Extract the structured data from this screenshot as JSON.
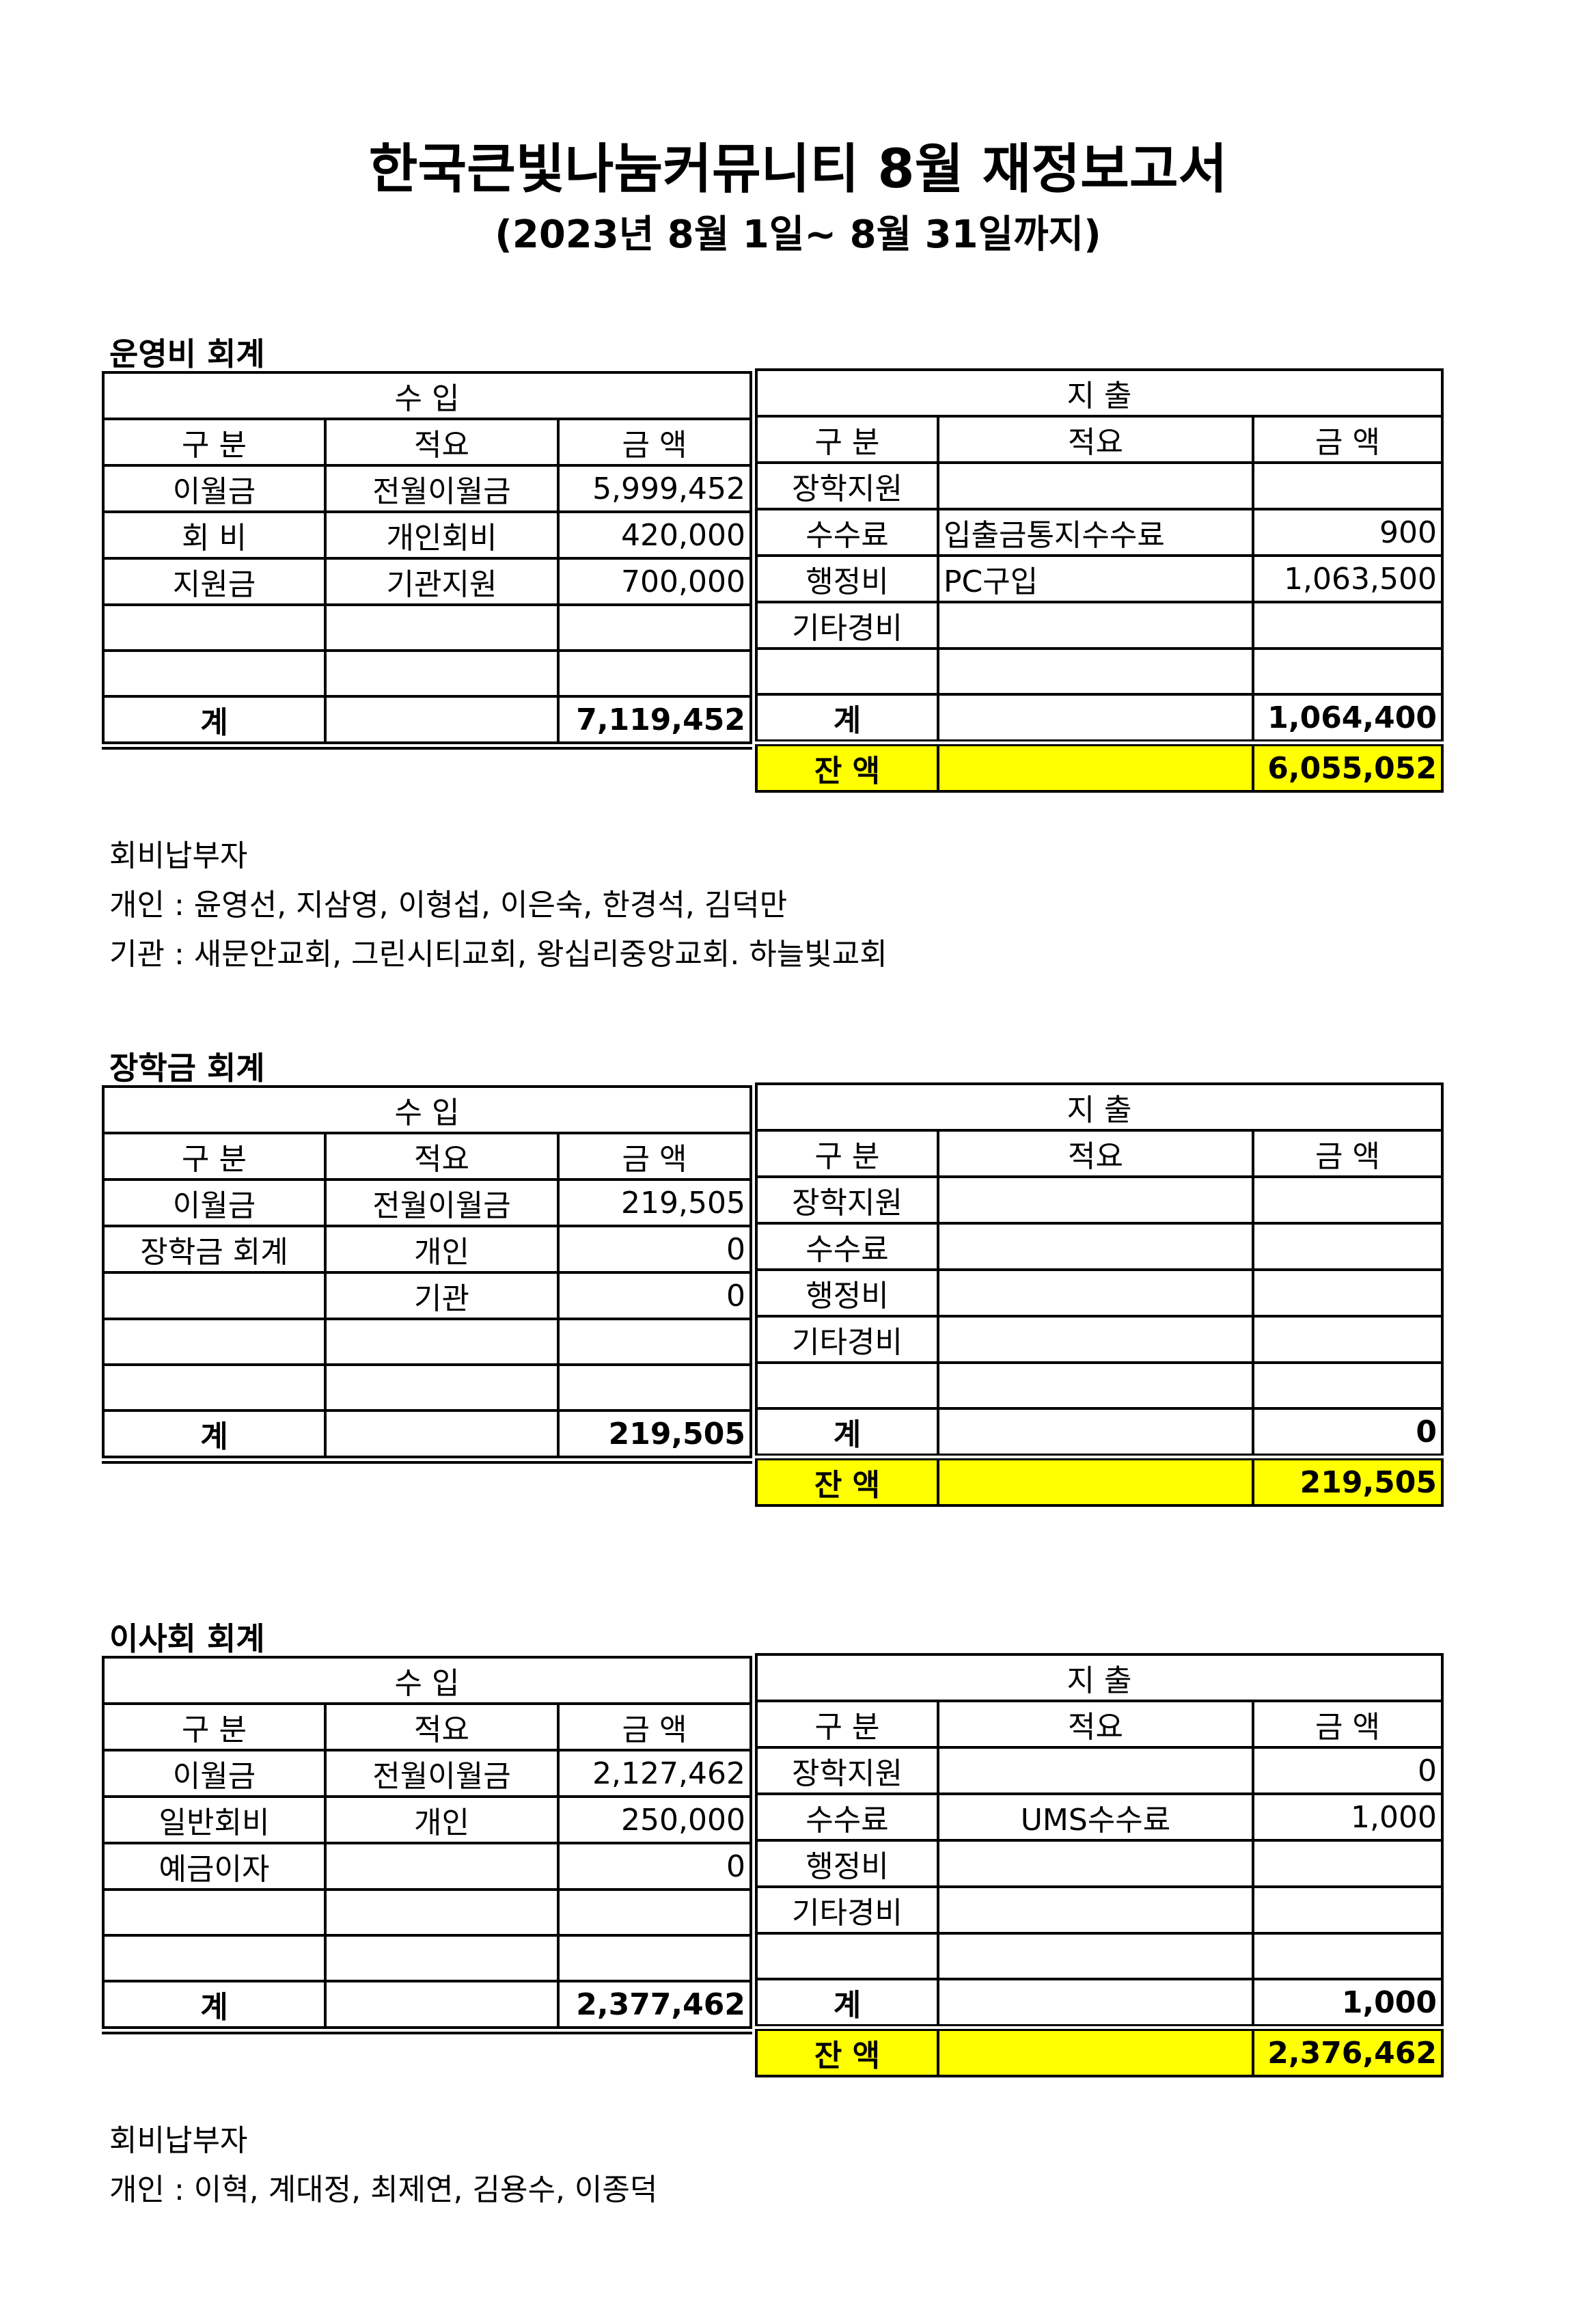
{
  "title": "한국큰빛나눔커뮤니티 8월 재정보고서",
  "subtitle": "(2023년  8월 1일~ 8월 31일까지)",
  "headers": {
    "income": "수 입",
    "expense": "지 출",
    "category": "구 분",
    "description": "적요",
    "amount": "금 액",
    "total": "계",
    "balance": "잔 액"
  },
  "sections": [
    {
      "name": "운영비 회계",
      "income_rows": [
        [
          "이월금",
          "전월이월금",
          "5,999,452"
        ],
        [
          "회 비",
          "개인회비",
          "420,000"
        ],
        [
          "지원금",
          "기관지원",
          "700,000"
        ],
        [
          "",
          "",
          ""
        ],
        [
          "",
          "",
          ""
        ]
      ],
      "income_total": "7,119,452",
      "expense_rows": [
        [
          "장학지원",
          "",
          ""
        ],
        [
          "수수료",
          "입출금통지수수료",
          "900"
        ],
        [
          "행정비",
          "PC구입",
          "1,063,500"
        ],
        [
          "기타경비",
          "",
          ""
        ],
        [
          "",
          "",
          ""
        ]
      ],
      "expense_total": "1,064,400",
      "balance": "6,055,052",
      "notes": [
        "회비납부자",
        "개인 : 윤영선, 지삼영, 이형섭, 이은숙, 한경석, 김덕만",
        "기관 : 새문안교회, 그린시티교회, 왕십리중앙교회. 하늘빛교회"
      ]
    },
    {
      "name": "장학금 회계",
      "income_rows": [
        [
          "이월금",
          "전월이월금",
          "219,505"
        ],
        [
          "장학금 회계",
          "개인",
          "0"
        ],
        [
          "",
          "기관",
          "0"
        ],
        [
          "",
          "",
          ""
        ],
        [
          "",
          "",
          ""
        ]
      ],
      "income_total": "219,505",
      "expense_rows": [
        [
          "장학지원",
          "",
          ""
        ],
        [
          "수수료",
          "",
          ""
        ],
        [
          "행정비",
          "",
          ""
        ],
        [
          "기타경비",
          "",
          ""
        ],
        [
          "",
          "",
          ""
        ]
      ],
      "expense_total": "0",
      "balance": "219,505",
      "notes": []
    },
    {
      "name": "이사회 회계",
      "income_rows": [
        [
          "이월금",
          "전월이월금",
          "2,127,462"
        ],
        [
          "일반회비",
          "개인",
          "250,000"
        ],
        [
          "예금이자",
          "",
          "0"
        ],
        [
          "",
          "",
          ""
        ],
        [
          "",
          "",
          ""
        ]
      ],
      "income_total": "2,377,462",
      "expense_rows": [
        [
          "장학지원",
          "",
          "0"
        ],
        [
          "수수료",
          "UMS수수료",
          "1,000"
        ],
        [
          "행정비",
          "",
          ""
        ],
        [
          "기타경비",
          "",
          ""
        ],
        [
          "",
          "",
          ""
        ]
      ],
      "expense_total": "1,000",
      "balance": "2,376,462",
      "notes": [
        "회비납부자",
        "개인 : 이혁, 계대정, 최제연, 김용수, 이종덕"
      ]
    }
  ],
  "colors": {
    "balance_highlight": "#ffff00"
  }
}
